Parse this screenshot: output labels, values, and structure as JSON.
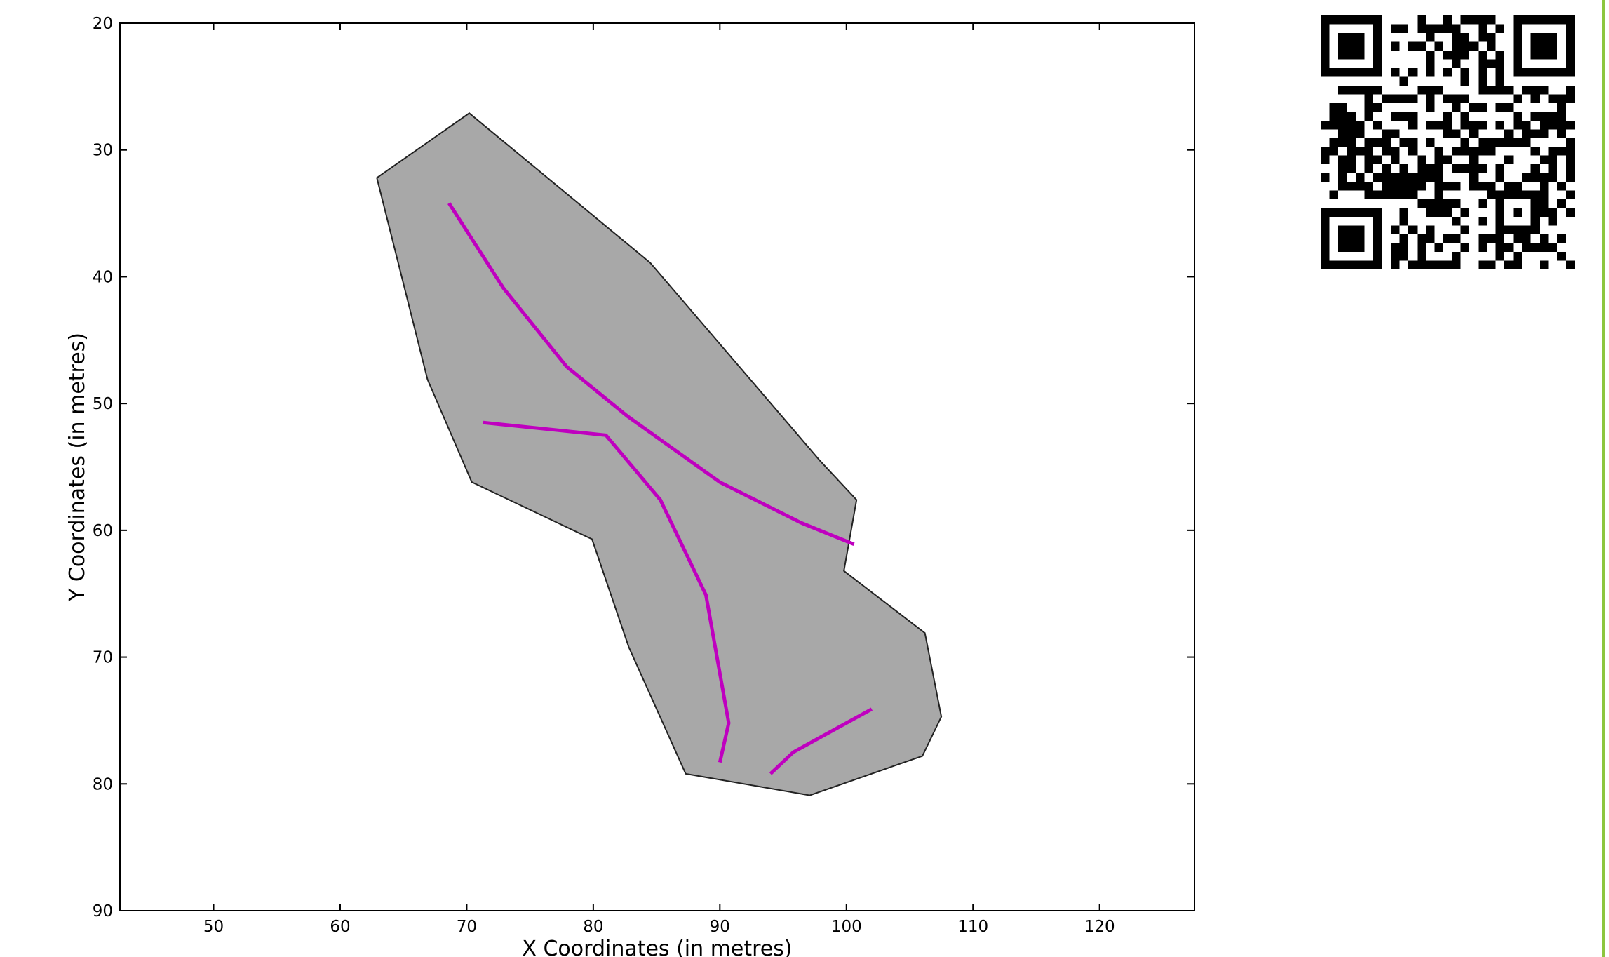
{
  "chart_data": {
    "type": "line",
    "title": "",
    "xlabel": "X Coordinates (in metres)",
    "ylabel": "Y Coordinates (in metres)",
    "xlim": [
      42.6,
      127.5
    ],
    "ylim": [
      90,
      20
    ],
    "y_inverted": true,
    "xticks": [
      50,
      60,
      70,
      80,
      90,
      100,
      110,
      120
    ],
    "yticks": [
      20,
      30,
      40,
      50,
      60,
      70,
      80,
      90
    ],
    "grid": false,
    "polygon": {
      "fill": "#a8a8a8",
      "edge": "#222222",
      "points": [
        [
          70.2,
          27.1
        ],
        [
          84.5,
          38.9
        ],
        [
          97.9,
          54.5
        ],
        [
          100.8,
          57.6
        ],
        [
          99.8,
          63.2
        ],
        [
          106.2,
          68.1
        ],
        [
          107.5,
          74.7
        ],
        [
          106.0,
          77.8
        ],
        [
          97.1,
          80.9
        ],
        [
          87.3,
          79.2
        ],
        [
          82.8,
          69.2
        ],
        [
          79.9,
          60.7
        ],
        [
          70.4,
          56.2
        ],
        [
          66.9,
          48.1
        ],
        [
          62.9,
          32.2
        ]
      ]
    },
    "line_color": "#bf00bf",
    "series": [
      {
        "x": [
          68.6,
          72.9,
          77.9,
          82.7,
          90.0,
          96.4,
          100.6
        ],
        "y": [
          34.2,
          40.9,
          47.1,
          51.0,
          56.2,
          59.4,
          61.1
        ]
      },
      {
        "x": [
          71.3,
          81.0,
          85.3,
          88.9,
          90.7,
          90.0
        ],
        "y": [
          51.5,
          52.5,
          57.6,
          65.1,
          75.2,
          78.3
        ]
      },
      {
        "x": [
          94.0,
          95.8,
          102.0
        ],
        "y": [
          79.2,
          77.5,
          74.1
        ]
      }
    ]
  },
  "qr_code": {
    "icon": "qr-code-icon"
  },
  "right_edge_bar": {
    "color": "#8dc63f"
  }
}
